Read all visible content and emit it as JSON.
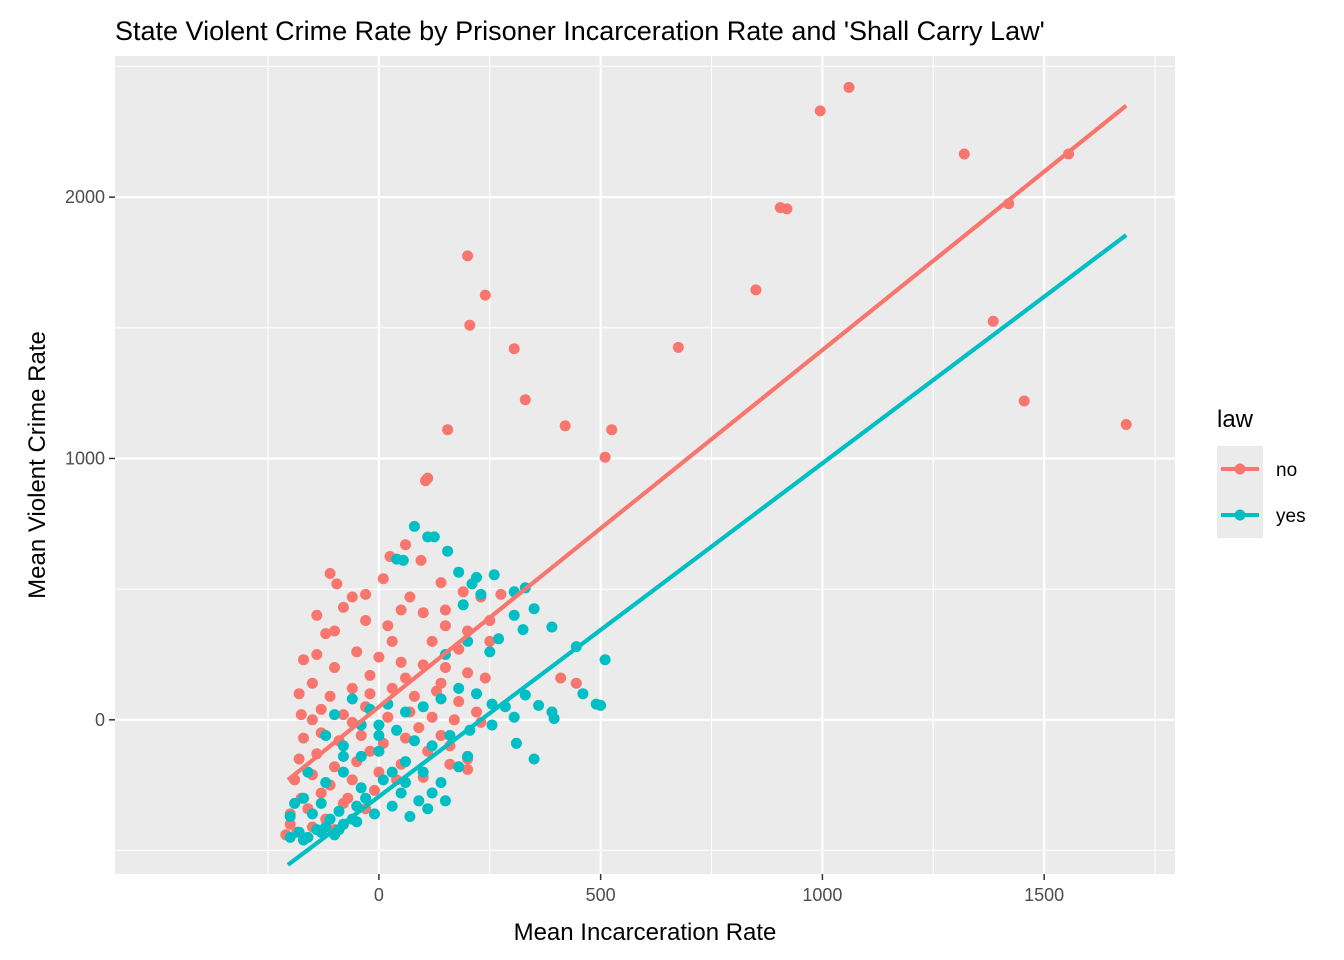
{
  "chart_data": {
    "type": "scatter",
    "title": "State Violent Crime Rate by Prisoner Incarceration Rate and 'Shall Carry Law'",
    "xlabel": "Mean Incarceration Rate",
    "ylabel": "Mean Violent Crime Rate",
    "xlim": [
      -595,
      1795
    ],
    "ylim": [
      -590,
      2540
    ],
    "x_ticks": [
      0,
      500,
      1000,
      1500
    ],
    "x_tick_labels": [
      "0",
      "500",
      "1000",
      "1500"
    ],
    "y_ticks": [
      0,
      1000,
      2000
    ],
    "y_tick_labels": [
      "0",
      "1000",
      "2000"
    ],
    "grid": true,
    "legend": {
      "title": "law",
      "position": "right"
    },
    "series": [
      {
        "name": "no",
        "color": "#F8766D",
        "fit_line": {
          "x": [
            -205,
            1685
          ],
          "y": [
            -230,
            2350
          ]
        },
        "points": [
          [
            1060,
            2420
          ],
          [
            995,
            2330
          ],
          [
            1320,
            2165
          ],
          [
            1555,
            2165
          ],
          [
            905,
            1960
          ],
          [
            920,
            1955
          ],
          [
            1420,
            1975
          ],
          [
            850,
            1645
          ],
          [
            1385,
            1525
          ],
          [
            1455,
            1220
          ],
          [
            1685,
            1130
          ],
          [
            675,
            1425
          ],
          [
            200,
            1775
          ],
          [
            240,
            1625
          ],
          [
            205,
            1510
          ],
          [
            305,
            1420
          ],
          [
            330,
            1225
          ],
          [
            420,
            1125
          ],
          [
            525,
            1110
          ],
          [
            155,
            1110
          ],
          [
            510,
            1005
          ],
          [
            110,
            925
          ],
          [
            105,
            915
          ],
          [
            410,
            160
          ],
          [
            445,
            140
          ],
          [
            -110,
            560
          ],
          [
            -95,
            520
          ],
          [
            25,
            625
          ],
          [
            60,
            670
          ],
          [
            95,
            610
          ],
          [
            140,
            525
          ],
          [
            190,
            490
          ],
          [
            230,
            470
          ],
          [
            275,
            480
          ],
          [
            -30,
            480
          ],
          [
            10,
            540
          ],
          [
            -140,
            400
          ],
          [
            -120,
            330
          ],
          [
            -80,
            430
          ],
          [
            -30,
            380
          ],
          [
            50,
            420
          ],
          [
            100,
            410
          ],
          [
            150,
            360
          ],
          [
            200,
            340
          ],
          [
            250,
            300
          ],
          [
            -170,
            230
          ],
          [
            -140,
            250
          ],
          [
            -100,
            200
          ],
          [
            -50,
            260
          ],
          [
            0,
            240
          ],
          [
            50,
            220
          ],
          [
            100,
            210
          ],
          [
            150,
            200
          ],
          [
            200,
            180
          ],
          [
            240,
            160
          ],
          [
            -180,
            100
          ],
          [
            -150,
            140
          ],
          [
            -110,
            90
          ],
          [
            -60,
            120
          ],
          [
            -20,
            100
          ],
          [
            30,
            120
          ],
          [
            80,
            90
          ],
          [
            130,
            110
          ],
          [
            180,
            70
          ],
          [
            220,
            30
          ],
          [
            -175,
            20
          ],
          [
            -130,
            40
          ],
          [
            -80,
            20
          ],
          [
            -30,
            50
          ],
          [
            20,
            10
          ],
          [
            70,
            30
          ],
          [
            120,
            10
          ],
          [
            170,
            0
          ],
          [
            230,
            -10
          ],
          [
            -170,
            -70
          ],
          [
            -130,
            -50
          ],
          [
            -90,
            -80
          ],
          [
            -40,
            -60
          ],
          [
            10,
            -90
          ],
          [
            60,
            -70
          ],
          [
            110,
            -120
          ],
          [
            160,
            -100
          ],
          [
            200,
            -150
          ],
          [
            -180,
            -150
          ],
          [
            -140,
            -130
          ],
          [
            -100,
            -180
          ],
          [
            -50,
            -160
          ],
          [
            0,
            -200
          ],
          [
            50,
            -170
          ],
          [
            100,
            -220
          ],
          [
            -190,
            -230
          ],
          [
            -150,
            -210
          ],
          [
            -110,
            -250
          ],
          [
            -60,
            -230
          ],
          [
            -10,
            -270
          ],
          [
            -175,
            -300
          ],
          [
            -130,
            -280
          ],
          [
            -80,
            -320
          ],
          [
            -200,
            -360
          ],
          [
            -160,
            -340
          ],
          [
            -120,
            -380
          ],
          [
            -210,
            -440
          ],
          [
            -185,
            -430
          ],
          [
            -150,
            -410
          ],
          [
            -200,
            -400
          ],
          [
            160,
            -170
          ],
          [
            200,
            -190
          ],
          [
            250,
            380
          ],
          [
            150,
            420
          ],
          [
            70,
            470
          ],
          [
            -60,
            470
          ],
          [
            20,
            360
          ],
          [
            120,
            300
          ],
          [
            180,
            270
          ],
          [
            -20,
            170
          ],
          [
            60,
            160
          ],
          [
            140,
            140
          ],
          [
            -100,
            340
          ],
          [
            30,
            300
          ],
          [
            -150,
            0
          ],
          [
            -60,
            -10
          ],
          [
            90,
            -30
          ],
          [
            140,
            -60
          ],
          [
            -20,
            -120
          ],
          [
            40,
            -230
          ],
          [
            -100,
            -420
          ],
          [
            -70,
            -300
          ],
          [
            -30,
            -340
          ]
        ]
      },
      {
        "name": "yes",
        "color": "#00BFC4",
        "fit_line": {
          "x": [
            -205,
            1685
          ],
          "y": [
            -555,
            1855
          ]
        },
        "points": [
          [
            80,
            740
          ],
          [
            110,
            700
          ],
          [
            125,
            700
          ],
          [
            40,
            615
          ],
          [
            55,
            610
          ],
          [
            155,
            645
          ],
          [
            180,
            565
          ],
          [
            260,
            555
          ],
          [
            220,
            545
          ],
          [
            210,
            520
          ],
          [
            230,
            480
          ],
          [
            305,
            490
          ],
          [
            330,
            505
          ],
          [
            190,
            440
          ],
          [
            350,
            425
          ],
          [
            305,
            400
          ],
          [
            390,
            355
          ],
          [
            325,
            345
          ],
          [
            270,
            310
          ],
          [
            445,
            280
          ],
          [
            510,
            230
          ],
          [
            250,
            260
          ],
          [
            200,
            300
          ],
          [
            150,
            250
          ],
          [
            460,
            100
          ],
          [
            490,
            60
          ],
          [
            500,
            55
          ],
          [
            330,
            95
          ],
          [
            360,
            55
          ],
          [
            390,
            30
          ],
          [
            395,
            5
          ],
          [
            285,
            50
          ],
          [
            305,
            10
          ],
          [
            255,
            60
          ],
          [
            220,
            100
          ],
          [
            180,
            120
          ],
          [
            140,
            80
          ],
          [
            100,
            50
          ],
          [
            60,
            30
          ],
          [
            20,
            60
          ],
          [
            -20,
            40
          ],
          [
            -60,
            80
          ],
          [
            -100,
            20
          ],
          [
            -40,
            -20
          ],
          [
            0,
            -60
          ],
          [
            40,
            -40
          ],
          [
            80,
            -80
          ],
          [
            120,
            -100
          ],
          [
            160,
            -60
          ],
          [
            205,
            -40
          ],
          [
            255,
            -20
          ],
          [
            310,
            -90
          ],
          [
            350,
            -150
          ],
          [
            -120,
            -60
          ],
          [
            -80,
            -100
          ],
          [
            -40,
            -140
          ],
          [
            0,
            -120
          ],
          [
            60,
            -160
          ],
          [
            100,
            -200
          ],
          [
            140,
            -240
          ],
          [
            180,
            -180
          ],
          [
            -160,
            -200
          ],
          [
            -120,
            -240
          ],
          [
            -80,
            -200
          ],
          [
            -40,
            -260
          ],
          [
            10,
            -230
          ],
          [
            50,
            -280
          ],
          [
            90,
            -310
          ],
          [
            -170,
            -300
          ],
          [
            -130,
            -320
          ],
          [
            -90,
            -350
          ],
          [
            -50,
            -330
          ],
          [
            -10,
            -360
          ],
          [
            30,
            -330
          ],
          [
            70,
            -370
          ],
          [
            110,
            -340
          ],
          [
            -200,
            -370
          ],
          [
            -180,
            -430
          ],
          [
            -160,
            -450
          ],
          [
            -140,
            -420
          ],
          [
            -120,
            -410
          ],
          [
            -100,
            -440
          ],
          [
            -80,
            -400
          ],
          [
            -60,
            -380
          ],
          [
            -190,
            -320
          ],
          [
            -150,
            -360
          ],
          [
            -110,
            -380
          ],
          [
            -30,
            -300
          ],
          [
            30,
            -200
          ],
          [
            150,
            -310
          ],
          [
            -200,
            -450
          ],
          [
            -170,
            -460
          ],
          [
            -130,
            -430
          ],
          [
            -90,
            -420
          ],
          [
            -50,
            -390
          ],
          [
            60,
            -240
          ],
          [
            120,
            -280
          ],
          [
            200,
            -140
          ],
          [
            0,
            -20
          ],
          [
            -80,
            -140
          ]
        ]
      }
    ]
  }
}
